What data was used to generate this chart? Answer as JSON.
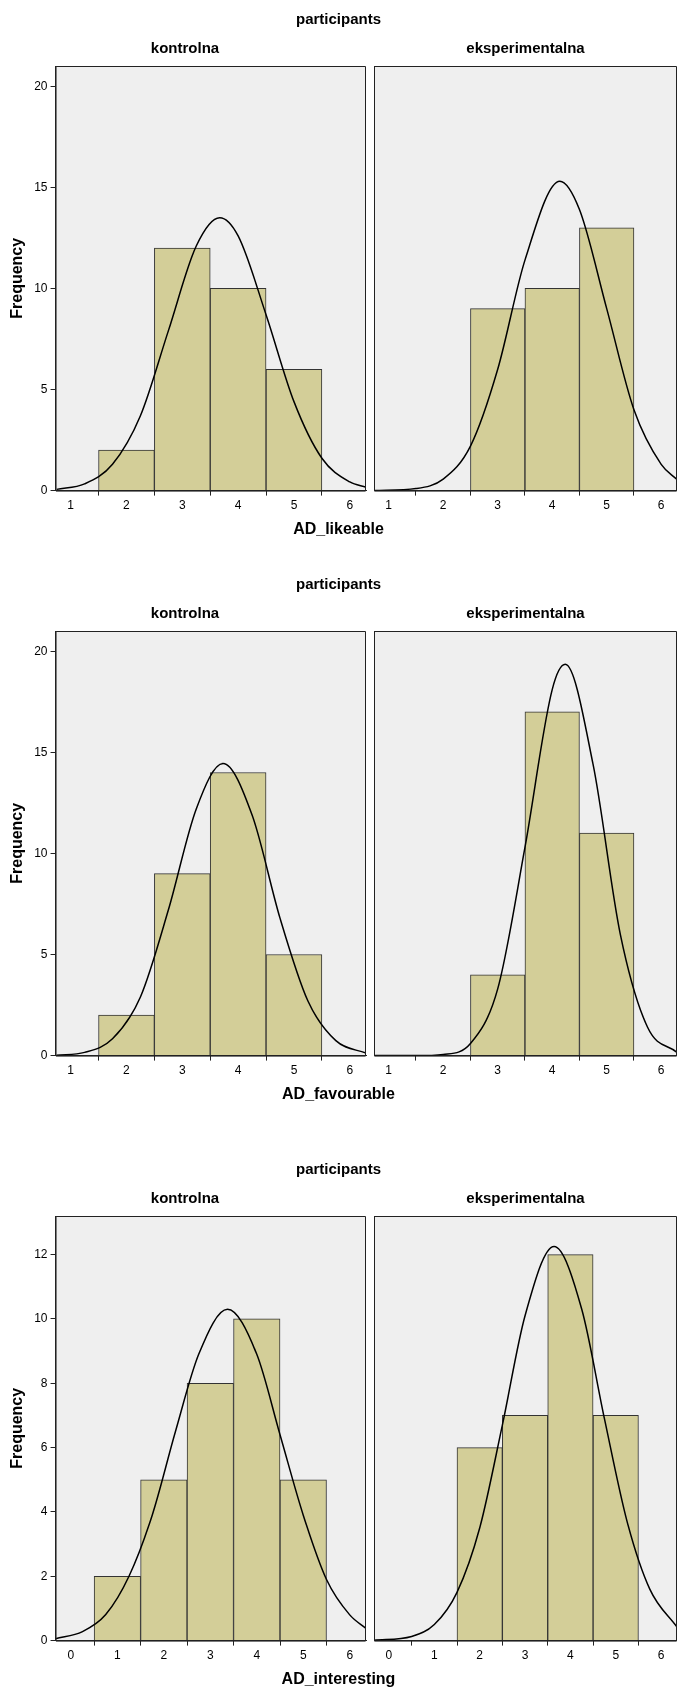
{
  "chart_data": [
    {
      "type": "histogram",
      "title": "kontrolna",
      "ylabel": "Frequency",
      "xlabel": "AD_likeable",
      "annotations": [
        "participants"
      ],
      "bins": [
        1.5,
        2.5,
        3.5,
        4.5,
        5.5
      ],
      "values": [
        2,
        12,
        10,
        6
      ],
      "color": "#d3ce98",
      "xlim": [
        0.73,
        6.29
      ],
      "xticks": [
        1,
        2,
        3,
        4,
        5,
        6
      ],
      "ylim": [
        0,
        21
      ],
      "yticks": [
        0,
        5,
        10,
        15,
        20
      ],
      "grid": false,
      "series": [
        {
          "type": "line",
          "color": "#000000",
          "marker": "none",
          "x": [
            0.75,
            1.25,
            1.75,
            2.25,
            2.75,
            3.25,
            3.67,
            4.0,
            4.5,
            5.0,
            5.5,
            6.0,
            6.29
          ],
          "values": [
            0.06,
            0.33,
            1.3,
            3.7,
            7.9,
            12.1,
            13.5,
            12.6,
            8.7,
            4.4,
            1.6,
            0.43,
            0.17
          ]
        }
      ]
    },
    {
      "type": "histogram",
      "title": "eksperimentalna",
      "bins": [
        2.5,
        3.5,
        4.5,
        5.5
      ],
      "values": [
        9,
        10,
        13
      ],
      "color": "#d3ce98",
      "xlim": [
        0.73,
        6.29
      ],
      "xticks": [
        1,
        2,
        3,
        4,
        5,
        6
      ],
      "ylim": [
        0,
        21
      ],
      "yticks": [
        0,
        5,
        10,
        15,
        20
      ],
      "grid": false,
      "tick_labels": "x",
      "series": [
        {
          "type": "line",
          "color": "#000000",
          "marker": "none",
          "x": [
            0.75,
            1.5,
            2.0,
            2.5,
            3.0,
            3.5,
            4.14,
            4.5,
            5.0,
            5.5,
            6.0,
            6.29
          ],
          "values": [
            0,
            0.1,
            0.57,
            2.2,
            6.0,
            11.4,
            15.3,
            13.9,
            9.0,
            4.0,
            1.3,
            0.55
          ]
        }
      ]
    },
    {
      "type": "histogram",
      "title": "kontrolna",
      "ylabel": "Frequency",
      "xlabel": "AD_favourable",
      "annotations": [
        "participants"
      ],
      "bins": [
        1.5,
        2.5,
        3.5,
        4.5,
        5.5
      ],
      "values": [
        2,
        9,
        14,
        5
      ],
      "color": "#d3ce98",
      "xlim": [
        0.73,
        6.29
      ],
      "xticks": [
        1,
        2,
        3,
        4,
        5,
        6
      ],
      "ylim": [
        0,
        21
      ],
      "yticks": [
        0,
        5,
        10,
        15,
        20
      ],
      "grid": false,
      "series": [
        {
          "type": "line",
          "color": "#000000",
          "marker": "none",
          "x": [
            0.75,
            1.25,
            1.75,
            2.25,
            2.75,
            3.25,
            3.73,
            4.25,
            4.75,
            5.25,
            5.75,
            6.29
          ],
          "values": [
            0.02,
            0.16,
            0.83,
            2.9,
            7.2,
            12.2,
            14.45,
            11.9,
            6.8,
            2.7,
            0.74,
            0.12
          ]
        }
      ]
    },
    {
      "type": "histogram",
      "title": "eksperimentalna",
      "bins": [
        2.5,
        3.5,
        4.5,
        5.5
      ],
      "values": [
        4,
        17,
        11
      ],
      "color": "#d3ce98",
      "xlim": [
        0.73,
        6.29
      ],
      "xticks": [
        1,
        2,
        3,
        4,
        5,
        6
      ],
      "ylim": [
        0,
        21
      ],
      "yticks": [
        0,
        5,
        10,
        15,
        20
      ],
      "grid": false,
      "tick_labels": "x",
      "series": [
        {
          "type": "line",
          "color": "#000000",
          "marker": "none",
          "x": [
            0.75,
            1.5,
            2.0,
            2.5,
            3.0,
            3.5,
            4.0,
            4.24,
            4.75,
            5.25,
            5.75,
            6.29
          ],
          "values": [
            0,
            0,
            0.06,
            0.6,
            3.3,
            10.3,
            18.1,
            19.35,
            14.4,
            6.0,
            1.4,
            0.16
          ]
        }
      ]
    },
    {
      "type": "histogram",
      "title": "kontrolna",
      "ylabel": "Frequency",
      "xlabel": "AD_interesting",
      "annotations": [
        "participants"
      ],
      "bins": [
        0.5,
        1.5,
        2.5,
        3.5,
        4.5,
        5.5
      ],
      "values": [
        2,
        5,
        8,
        10,
        5
      ],
      "color": "#d3ce98",
      "xlim": [
        -0.33,
        6.35
      ],
      "xticks": [
        0,
        1,
        2,
        3,
        4,
        5,
        6
      ],
      "ylim": [
        0,
        13.2
      ],
      "yticks": [
        0,
        2,
        4,
        6,
        8,
        10,
        12
      ],
      "grid": false,
      "series": [
        {
          "type": "line",
          "color": "#000000",
          "marker": "none",
          "x": [
            -0.33,
            0.25,
            0.75,
            1.25,
            1.75,
            2.25,
            2.75,
            3.37,
            4.0,
            4.5,
            5.0,
            5.5,
            6.0,
            6.35
          ],
          "values": [
            0.06,
            0.28,
            0.81,
            2.0,
            3.9,
            6.5,
            8.9,
            10.3,
            8.9,
            6.4,
            3.9,
            1.9,
            0.8,
            0.38
          ]
        }
      ]
    },
    {
      "type": "histogram",
      "title": "eksperimentalna",
      "bins": [
        1.5,
        2.5,
        3.5,
        4.5,
        5.5
      ],
      "values": [
        6,
        7,
        12,
        7
      ],
      "color": "#d3ce98",
      "xlim": [
        -0.33,
        6.35
      ],
      "xticks": [
        0,
        1,
        2,
        3,
        4,
        5,
        6
      ],
      "ylim": [
        0,
        13.2
      ],
      "yticks": [
        0,
        2,
        4,
        6,
        8,
        10,
        12
      ],
      "grid": false,
      "tick_labels": "x",
      "series": [
        {
          "type": "line",
          "color": "#000000",
          "marker": "none",
          "x": [
            -0.33,
            0.5,
            1.0,
            1.5,
            2.0,
            2.5,
            3.0,
            3.64,
            4.25,
            4.75,
            5.25,
            5.75,
            6.35
          ],
          "values": [
            0.01,
            0.13,
            0.5,
            1.5,
            3.5,
            6.7,
            10.1,
            12.25,
            10.3,
            6.9,
            3.7,
            1.6,
            0.42
          ]
        }
      ]
    }
  ]
}
